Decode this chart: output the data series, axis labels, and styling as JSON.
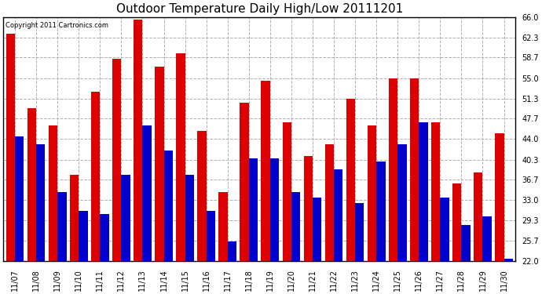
{
  "title": "Outdoor Temperature Daily High/Low 20111201",
  "copyright": "Copyright 2011 Cartronics.com",
  "dates": [
    "11/07",
    "11/08",
    "11/09",
    "11/10",
    "11/11",
    "11/12",
    "11/13",
    "11/14",
    "11/15",
    "11/16",
    "11/17",
    "11/18",
    "11/19",
    "11/20",
    "11/21",
    "11/22",
    "11/23",
    "11/24",
    "11/25",
    "11/26",
    "11/27",
    "11/28",
    "11/29",
    "11/30"
  ],
  "highs": [
    63.0,
    49.5,
    46.5,
    37.5,
    52.5,
    58.5,
    65.5,
    57.0,
    59.5,
    45.5,
    34.5,
    50.5,
    54.5,
    47.0,
    41.0,
    43.0,
    51.3,
    46.5,
    55.0,
    55.0,
    47.0,
    36.0,
    38.0,
    45.0
  ],
  "lows": [
    44.5,
    43.0,
    34.5,
    31.0,
    30.5,
    37.5,
    46.5,
    42.0,
    37.5,
    31.0,
    25.5,
    40.5,
    40.5,
    34.5,
    33.5,
    38.5,
    32.5,
    40.0,
    43.0,
    47.0,
    33.5,
    28.5,
    30.0,
    22.5
  ],
  "high_color": "#dd0000",
  "low_color": "#0000cc",
  "background_color": "#ffffff",
  "grid_color": "#b0b0b0",
  "ylim_min": 22.0,
  "ylim_max": 66.0,
  "yticks": [
    22.0,
    25.7,
    29.3,
    33.0,
    36.7,
    40.3,
    44.0,
    47.7,
    51.3,
    55.0,
    58.7,
    62.3,
    66.0
  ],
  "bar_width": 0.42,
  "title_fontsize": 11,
  "tick_fontsize": 7,
  "copyright_fontsize": 6
}
